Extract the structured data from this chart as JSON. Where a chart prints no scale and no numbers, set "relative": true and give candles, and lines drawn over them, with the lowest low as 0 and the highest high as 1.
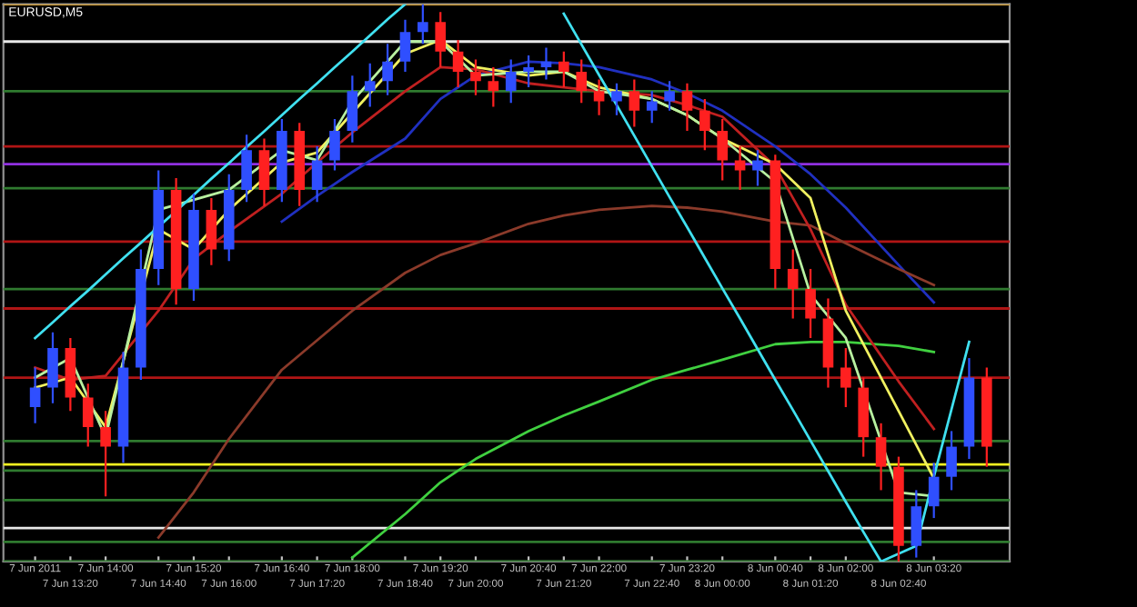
{
  "chart_data": {
    "type": "candlestick",
    "title": "EURUSD,M5",
    "relative": true,
    "tick_labels": "x",
    "grid": false,
    "categories": [
      "7 Jun 2011",
      null,
      "7 Jun 13:20",
      null,
      "7 Jun 14:00",
      null,
      null,
      "7 Jun 14:40",
      null,
      "7 Jun 15:20",
      null,
      "7 Jun 16:00",
      null,
      null,
      "7 Jun 16:40",
      null,
      "7 Jun 17:20",
      null,
      "7 Jun 18:00",
      null,
      null,
      "7 Jun 18:40",
      null,
      "7 Jun 19:20",
      null,
      "7 Jun 20:00",
      null,
      null,
      "7 Jun 20:40",
      null,
      "7 Jun 21:20",
      null,
      "7 Jun 22:00",
      null,
      null,
      "7 Jun 22:40",
      null,
      "7 Jun 23:20",
      null,
      "8 Jun 00:00",
      null,
      null,
      "8 Jun 00:40",
      null,
      "8 Jun 01:20",
      null,
      "8 Jun 02:00",
      null,
      null,
      "8 Jun 02:40",
      null,
      "8 Jun 03:20",
      null,
      null,
      null
    ],
    "ohlc": [
      [
        0.277,
        0.348,
        0.248,
        0.312
      ],
      [
        0.312,
        0.411,
        0.284,
        0.383
      ],
      [
        0.383,
        0.401,
        0.27,
        0.294
      ],
      [
        0.294,
        0.319,
        0.206,
        0.241
      ],
      [
        0.241,
        0.27,
        0.117,
        0.206
      ],
      [
        0.206,
        0.376,
        0.177,
        0.348
      ],
      [
        0.348,
        0.56,
        0.326,
        0.525
      ],
      [
        0.525,
        0.702,
        0.496,
        0.667
      ],
      [
        0.667,
        0.688,
        0.461,
        0.489
      ],
      [
        0.489,
        0.66,
        0.468,
        0.631
      ],
      [
        0.631,
        0.652,
        0.532,
        0.56
      ],
      [
        0.56,
        0.695,
        0.539,
        0.667
      ],
      [
        0.667,
        0.766,
        0.645,
        0.738
      ],
      [
        0.738,
        0.759,
        0.638,
        0.667
      ],
      [
        0.667,
        0.794,
        0.645,
        0.773
      ],
      [
        0.773,
        0.787,
        0.638,
        0.667
      ],
      [
        0.667,
        0.745,
        0.645,
        0.72
      ],
      [
        0.72,
        0.794,
        0.702,
        0.773
      ],
      [
        0.773,
        0.872,
        0.752,
        0.844
      ],
      [
        0.844,
        0.894,
        0.816,
        0.862
      ],
      [
        0.862,
        0.929,
        0.837,
        0.897
      ],
      [
        0.897,
        0.972,
        0.879,
        0.95
      ],
      [
        0.95,
        1.0,
        0.929,
        0.968
      ],
      [
        0.968,
        0.986,
        0.887,
        0.915
      ],
      [
        0.915,
        0.936,
        0.851,
        0.879
      ],
      [
        0.879,
        0.901,
        0.837,
        0.862
      ],
      [
        0.862,
        0.887,
        0.816,
        0.844
      ],
      [
        0.844,
        0.901,
        0.823,
        0.879
      ],
      [
        0.879,
        0.908,
        0.851,
        0.887
      ],
      [
        0.887,
        0.922,
        0.865,
        0.897
      ],
      [
        0.897,
        0.915,
        0.851,
        0.879
      ],
      [
        0.879,
        0.901,
        0.823,
        0.844
      ],
      [
        0.844,
        0.865,
        0.801,
        0.826
      ],
      [
        0.826,
        0.858,
        0.801,
        0.844
      ],
      [
        0.844,
        0.865,
        0.78,
        0.809
      ],
      [
        0.809,
        0.844,
        0.787,
        0.826
      ],
      [
        0.826,
        0.862,
        0.809,
        0.844
      ],
      [
        0.844,
        0.858,
        0.773,
        0.809
      ],
      [
        0.809,
        0.83,
        0.738,
        0.773
      ],
      [
        0.773,
        0.794,
        0.684,
        0.72
      ],
      [
        0.72,
        0.745,
        0.667,
        0.702
      ],
      [
        0.702,
        0.738,
        0.674,
        0.72
      ],
      [
        0.72,
        0.73,
        0.489,
        0.525
      ],
      [
        0.525,
        0.56,
        0.436,
        0.489
      ],
      [
        0.489,
        0.525,
        0.401,
        0.436
      ],
      [
        0.436,
        0.472,
        0.312,
        0.348
      ],
      [
        0.348,
        0.383,
        0.277,
        0.312
      ],
      [
        0.312,
        0.33,
        0.188,
        0.223
      ],
      [
        0.223,
        0.248,
        0.128,
        0.17
      ],
      [
        0.17,
        0.188,
        0.0,
        0.028
      ],
      [
        0.028,
        0.128,
        0.007,
        0.099
      ],
      [
        0.099,
        0.177,
        0.078,
        0.152
      ],
      [
        0.152,
        0.234,
        0.128,
        0.206
      ],
      [
        0.206,
        0.365,
        0.184,
        0.33
      ],
      [
        0.33,
        0.348,
        0.17,
        0.206
      ]
    ],
    "colors": [
      "#2f4fff",
      "#2f4fff",
      "#ff2020",
      "#ff2020",
      "#ff2020",
      "#2f4fff",
      "#2f4fff",
      "#2f4fff",
      "#ff2020",
      "#2f4fff",
      "#ff2020",
      "#2f4fff",
      "#2f4fff",
      "#ff2020",
      "#2f4fff",
      "#ff2020",
      "#2f4fff",
      "#2f4fff",
      "#2f4fff",
      "#2f4fff",
      "#2f4fff",
      "#2f4fff",
      "#2f4fff",
      "#ff2020",
      "#ff2020",
      "#ff2020",
      "#ff2020",
      "#2f4fff",
      "#2f4fff",
      "#2f4fff",
      "#ff2020",
      "#ff2020",
      "#ff2020",
      "#2f4fff",
      "#ff2020",
      "#2f4fff",
      "#2f4fff",
      "#ff2020",
      "#ff2020",
      "#ff2020",
      "#ff2020",
      "#2f4fff",
      "#ff2020",
      "#ff2020",
      "#ff2020",
      "#ff2020",
      "#ff2020",
      "#ff2020",
      "#ff2020",
      "#ff2020",
      "#2f4fff",
      "#2f4fff",
      "#2f4fff",
      "#2f4fff",
      "#ff2020"
    ],
    "series": [
      {
        "type": "line",
        "color": "#2030c0",
        "x": [
          "7 Jun 16:40",
          "7 Jun 17:20",
          "7 Jun 18:00",
          "7 Jun 18:40",
          "7 Jun 19:20",
          "7 Jun 20:00",
          "7 Jun 20:40",
          "7 Jun 21:20",
          "7 Jun 22:00",
          "7 Jun 22:40",
          "7 Jun 23:20",
          "8 Jun 00:00",
          "8 Jun 00:40",
          "8 Jun 01:20",
          "8 Jun 02:00",
          "8 Jun 02:40",
          "8 Jun 03:20"
        ],
        "values": [
          0.61,
          0.656,
          0.699,
          0.759,
          0.83,
          0.872,
          0.897,
          0.894,
          0.887,
          0.865,
          0.84,
          0.809,
          0.745,
          0.695,
          0.635,
          0.532,
          0.465
        ]
      },
      {
        "type": "line",
        "color": "#8b3a2a",
        "x": [
          "7 Jun 14:40",
          "7 Jun 15:20",
          "7 Jun 16:00",
          "7 Jun 16:40",
          "7 Jun 17:20",
          "7 Jun 18:00",
          "7 Jun 18:40",
          "7 Jun 19:20",
          "7 Jun 20:00",
          "7 Jun 20:40",
          "7 Jun 21:20",
          "7 Jun 22:00",
          "7 Jun 22:40",
          "7 Jun 23:20",
          "8 Jun 00:00",
          "8 Jun 00:40",
          "8 Jun 01:20",
          "8 Jun 02:00",
          "8 Jun 02:40",
          "8 Jun 03:20"
        ],
        "values": [
          0.043,
          0.124,
          0.22,
          0.344,
          0.397,
          0.45,
          0.518,
          0.55,
          0.571,
          0.606,
          0.621,
          0.631,
          0.638,
          0.635,
          0.628,
          0.61,
          0.603,
          0.571,
          0.525,
          0.496
        ]
      },
      {
        "type": "line",
        "color": "#40d040",
        "x": [
          "7 Jun 18:00",
          "7 Jun 18:40",
          "7 Jun 19:20",
          "7 Jun 20:00",
          "7 Jun 20:40",
          "7 Jun 21:20",
          "7 Jun 22:00",
          "7 Jun 22:40",
          "7 Jun 23:20",
          "8 Jun 00:00",
          "8 Jun 00:40",
          "8 Jun 01:20",
          "8 Jun 02:00",
          "8 Jun 02:40",
          "8 Jun 03:20"
        ],
        "values": [
          0.007,
          0.085,
          0.142,
          0.184,
          0.234,
          0.262,
          0.287,
          0.326,
          0.344,
          0.362,
          0.39,
          0.394,
          0.394,
          0.387,
          0.376
        ]
      },
      {
        "type": "line",
        "color": "#c02020",
        "x": [
          "7 Jun 2011",
          "7 Jun 13:20",
          "7 Jun 14:00",
          "7 Jun 14:40",
          "7 Jun 15:20",
          "7 Jun 16:00",
          "7 Jun 16:40",
          "7 Jun 17:20",
          "7 Jun 18:00",
          "7 Jun 18:40",
          "7 Jun 19:20",
          "7 Jun 20:00",
          "7 Jun 20:40",
          "7 Jun 21:20",
          "7 Jun 22:00",
          "7 Jun 22:40",
          "7 Jun 23:20",
          "8 Jun 00:00",
          "8 Jun 00:40",
          "8 Jun 01:20",
          "8 Jun 02:00",
          "8 Jun 02:40",
          "8 Jun 03:20"
        ],
        "values": [
          0.348,
          0.326,
          0.333,
          0.45,
          0.543,
          0.592,
          0.66,
          0.716,
          0.77,
          0.844,
          0.887,
          0.883,
          0.858,
          0.851,
          0.844,
          0.837,
          0.819,
          0.798,
          0.709,
          0.596,
          0.461,
          0.323,
          0.238
        ]
      },
      {
        "type": "line",
        "color": "#f0f060",
        "x": [
          "7 Jun 2011",
          "7 Jun 13:20",
          "7 Jun 14:00",
          "7 Jun 14:40",
          "7 Jun 15:20",
          "7 Jun 16:00",
          "7 Jun 16:40",
          "7 Jun 17:20",
          "7 Jun 18:00",
          "7 Jun 18:40",
          "7 Jun 19:20",
          "7 Jun 20:00",
          "7 Jun 20:40",
          "7 Jun 21:20",
          "7 Jun 22:00",
          "7 Jun 22:40",
          "7 Jun 23:20",
          "8 Jun 00:00",
          "8 Jun 00:40",
          "8 Jun 01:20",
          "8 Jun 02:00",
          "8 Jun 02:40",
          "8 Jun 03:20"
        ],
        "values": [
          0.312,
          0.33,
          0.241,
          0.596,
          0.56,
          0.631,
          0.716,
          0.734,
          0.805,
          0.911,
          0.936,
          0.887,
          0.872,
          0.879,
          0.851,
          0.83,
          0.801,
          0.759,
          0.713,
          0.652,
          0.45,
          0.27,
          0.149
        ]
      },
      {
        "type": "line",
        "color": "#b8f0a0",
        "x": [
          "7 Jun 2011",
          "7 Jun 13:20",
          "7 Jun 14:00",
          "7 Jun 14:40",
          "7 Jun 15:20",
          "7 Jun 16:00",
          "7 Jun 16:40",
          "7 Jun 17:20",
          "7 Jun 18:00",
          "7 Jun 18:40",
          "7 Jun 19:20",
          "7 Jun 20:00",
          "7 Jun 20:40",
          "7 Jun 21:20",
          "7 Jun 22:00",
          "7 Jun 22:40",
          "7 Jun 23:20",
          "8 Jun 00:00",
          "8 Jun 00:40",
          "8 Jun 01:20",
          "8 Jun 02:00",
          "8 Jun 02:40",
          "8 Jun 03:20"
        ],
        "values": [
          0.33,
          0.365,
          0.223,
          0.631,
          null,
          0.667,
          0.738,
          0.72,
          0.826,
          0.933,
          0.933,
          0.872,
          0.879,
          0.879,
          0.844,
          0.83,
          0.801,
          0.759,
          0.681,
          0.479,
          0.401,
          0.124,
          0.117
        ]
      },
      {
        "type": "line",
        "color": "#40e0f0",
        "values": [
          0.401,
          0.429,
          0.458,
          0.486,
          0.515,
          0.544,
          0.572,
          0.601,
          0.629,
          0.658,
          0.687,
          0.715,
          0.744,
          0.772,
          0.801,
          0.83,
          0.858,
          0.887,
          0.915,
          0.944,
          0.973,
          1.0,
          null,
          null,
          null,
          null,
          null,
          null,
          null,
          null,
          null,
          null,
          null,
          null,
          null,
          null,
          null,
          null,
          null,
          null,
          null,
          null,
          null,
          null,
          null,
          null,
          null,
          null,
          null,
          null,
          null,
          null,
          null,
          null,
          null
        ]
      },
      {
        "type": "line",
        "color": "#40e0f0",
        "values": [
          null,
          null,
          null,
          null,
          null,
          null,
          null,
          null,
          null,
          null,
          null,
          null,
          null,
          null,
          null,
          null,
          null,
          null,
          null,
          null,
          null,
          null,
          null,
          null,
          null,
          null,
          null,
          null,
          null,
          null,
          0.983,
          0.928,
          0.873,
          0.819,
          0.764,
          0.709,
          0.654,
          0.6,
          0.545,
          0.49,
          0.436,
          0.381,
          0.326,
          0.272,
          0.217,
          0.162,
          0.107,
          0.053,
          0.0,
          null,
          0.028,
          0.152,
          0.273,
          0.394,
          null
        ]
      }
    ],
    "ref_lines": [
      {
        "axis": "y",
        "value": 1.0,
        "color": "#d09a30"
      },
      {
        "axis": "y",
        "value": 0.933,
        "color": "#e8e8e8"
      },
      {
        "axis": "y",
        "value": 0.844,
        "color": "#2f7a2f"
      },
      {
        "axis": "y",
        "value": 0.745,
        "color": "#b01515"
      },
      {
        "axis": "y",
        "value": 0.713,
        "color": "#9030e0"
      },
      {
        "axis": "y",
        "value": 0.67,
        "color": "#2f7a2f"
      },
      {
        "axis": "y",
        "value": 0.574,
        "color": "#b01515"
      },
      {
        "axis": "y",
        "value": 0.489,
        "color": "#2f7a2f"
      },
      {
        "axis": "y",
        "value": 0.454,
        "color": "#b01515"
      },
      {
        "axis": "y",
        "value": 0.33,
        "color": "#b01515"
      },
      {
        "axis": "y",
        "value": 0.216,
        "color": "#2f7a2f"
      },
      {
        "axis": "y",
        "value": 0.174,
        "color": "#f0f020"
      },
      {
        "axis": "y",
        "value": 0.163,
        "color": "#2f7a2f"
      },
      {
        "axis": "y",
        "value": 0.11,
        "color": "#2f7a2f"
      },
      {
        "axis": "y",
        "value": 0.06,
        "color": "#e8e8e8"
      },
      {
        "axis": "y",
        "value": 0.035,
        "color": "#2f7a2f"
      },
      {
        "axis": "y",
        "value": 0.0,
        "color": "#2f7a2f"
      }
    ]
  }
}
